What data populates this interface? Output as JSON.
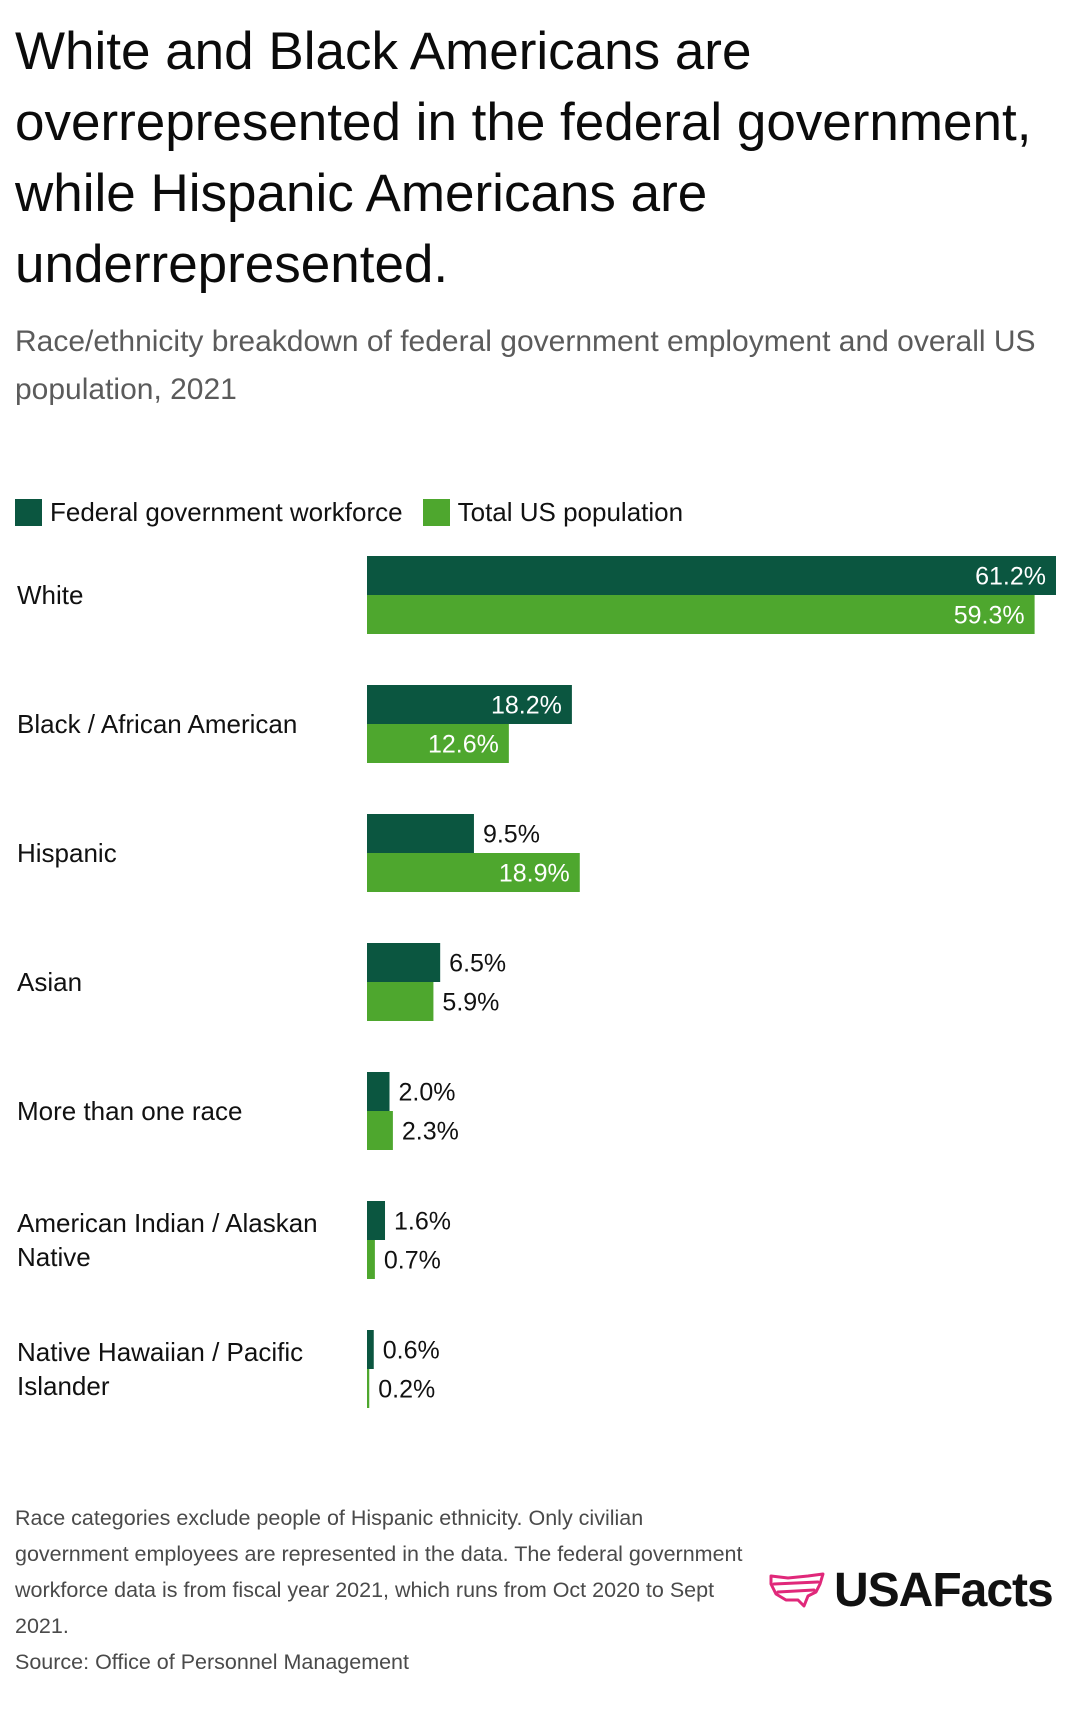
{
  "title": "White and Black Americans are overrepresented in the federal government, while Hispanic Americans are underrepresented.",
  "subtitle": "Race/ethnicity breakdown of federal government employment and overall US population, 2021",
  "colors": {
    "federal": "#0b5640",
    "population": "#4ea72e",
    "logo_mark": "#e0287a"
  },
  "chart_data": {
    "type": "bar",
    "orientation": "horizontal",
    "title": "Race/ethnicity breakdown of federal government employment and overall US population, 2021",
    "categories": [
      [
        "White"
      ],
      [
        "Black / African American"
      ],
      [
        "Hispanic"
      ],
      [
        "Asian"
      ],
      [
        "More than one race"
      ],
      [
        "American Indian / Alaskan",
        "Native"
      ],
      [
        "Native Hawaiian / Pacific",
        "Islander"
      ]
    ],
    "series": [
      {
        "name": "Federal government workforce",
        "values": [
          61.2,
          18.2,
          9.5,
          6.5,
          2.0,
          1.6,
          0.6
        ],
        "labels": [
          "61.2%",
          "18.2%",
          "9.5%",
          "6.5%",
          "2.0%",
          "1.6%",
          "0.6%"
        ]
      },
      {
        "name": "Total US population",
        "values": [
          59.3,
          12.6,
          18.9,
          5.9,
          2.3,
          0.7,
          0.2
        ],
        "labels": [
          "59.3%",
          "12.6%",
          "18.9%",
          "5.9%",
          "2.3%",
          "0.7%",
          "0.2%"
        ]
      }
    ],
    "xlim": [
      0,
      61.2
    ],
    "unit": "%",
    "legend_position": "top-left",
    "grid": false
  },
  "footnote": "Race categories exclude people of Hispanic ethnicity. Only civilian government employees are represented in the data. The federal government workforce data is from fiscal year 2021, which runs from Oct 2020 to Sept 2021.",
  "source": "Source: Office of Personnel Management",
  "brand": "USAFacts"
}
